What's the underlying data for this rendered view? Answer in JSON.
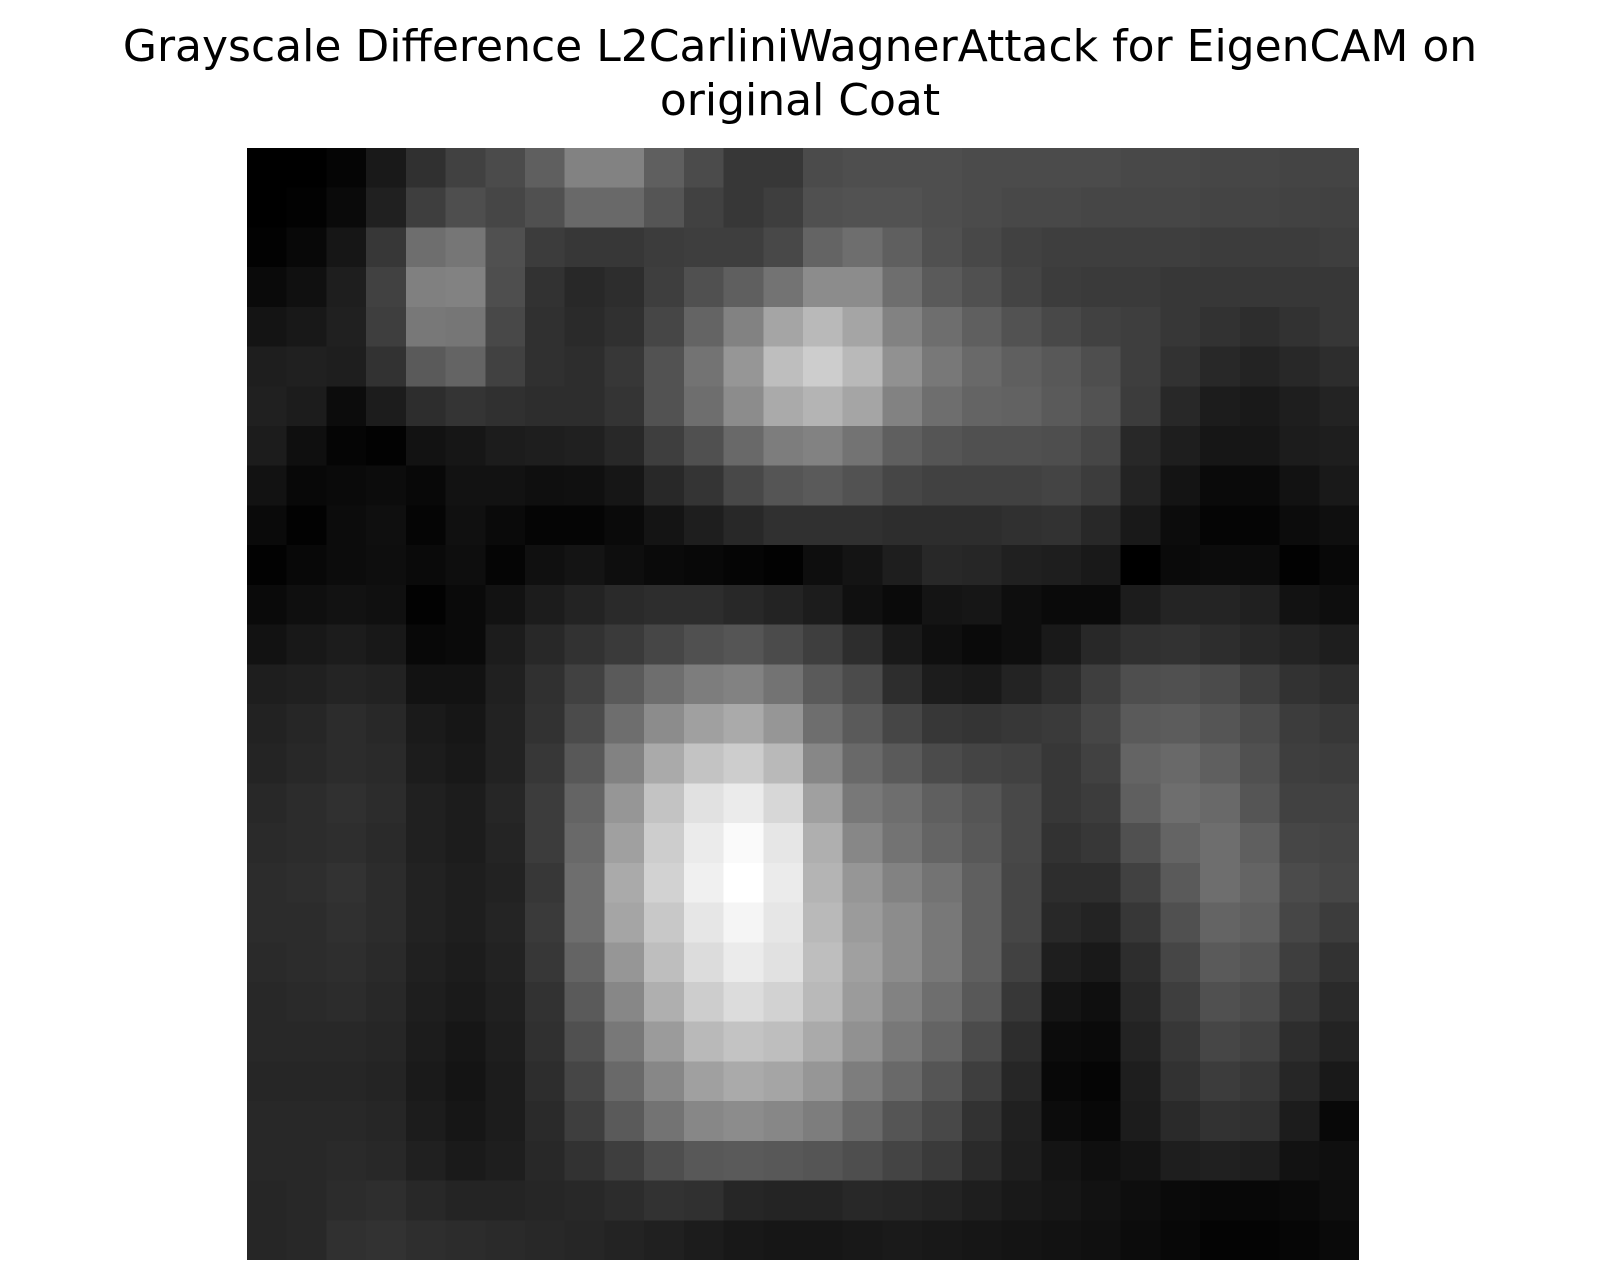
{
  "chart_data": {
    "type": "heatmap",
    "title_line1": "Grayscale Difference L2CarliniWagnerAttack for EigenCAM on",
    "title_line2": "original Coat",
    "colormap": "gray",
    "axes_visible": false,
    "rows": 28,
    "cols": 28,
    "values": [
      [
        0,
        0,
        5,
        25,
        48,
        65,
        75,
        95,
        130,
        130,
        95,
        75,
        55,
        55,
        75,
        78,
        78,
        78,
        75,
        75,
        75,
        75,
        72,
        72,
        70,
        70,
        68,
        68
      ],
      [
        0,
        2,
        10,
        32,
        62,
        78,
        70,
        80,
        105,
        105,
        85,
        65,
        55,
        62,
        80,
        82,
        82,
        78,
        75,
        72,
        72,
        70,
        70,
        70,
        68,
        68,
        66,
        65
      ],
      [
        2,
        8,
        22,
        55,
        110,
        118,
        80,
        60,
        55,
        55,
        60,
        62,
        62,
        72,
        100,
        110,
        95,
        80,
        72,
        65,
        62,
        62,
        62,
        62,
        60,
        60,
        60,
        62
      ],
      [
        10,
        16,
        30,
        65,
        128,
        130,
        78,
        50,
        40,
        45,
        62,
        80,
        95,
        115,
        140,
        140,
        110,
        90,
        80,
        68,
        60,
        58,
        58,
        55,
        55,
        55,
        55,
        55
      ],
      [
        20,
        24,
        32,
        62,
        120,
        118,
        72,
        48,
        42,
        48,
        70,
        100,
        130,
        165,
        185,
        165,
        130,
        110,
        95,
        82,
        72,
        65,
        62,
        55,
        50,
        45,
        50,
        55
      ],
      [
        30,
        32,
        30,
        50,
        90,
        100,
        65,
        48,
        45,
        55,
        82,
        115,
        150,
        190,
        205,
        185,
        145,
        120,
        105,
        95,
        88,
        78,
        62,
        50,
        40,
        35,
        40,
        45
      ],
      [
        32,
        28,
        12,
        28,
        45,
        52,
        48,
        45,
        45,
        52,
        82,
        110,
        140,
        170,
        180,
        165,
        130,
        110,
        100,
        98,
        90,
        82,
        60,
        40,
        28,
        25,
        30,
        35
      ],
      [
        28,
        15,
        5,
        2,
        18,
        22,
        28,
        30,
        32,
        40,
        62,
        80,
        105,
        125,
        130,
        115,
        95,
        85,
        80,
        80,
        78,
        70,
        40,
        30,
        22,
        22,
        28,
        30
      ],
      [
        18,
        8,
        10,
        12,
        8,
        18,
        18,
        15,
        16,
        22,
        40,
        52,
        72,
        85,
        90,
        82,
        70,
        65,
        65,
        65,
        68,
        60,
        35,
        20,
        10,
        10,
        18,
        25
      ],
      [
        10,
        2,
        12,
        15,
        5,
        16,
        10,
        5,
        5,
        10,
        20,
        30,
        40,
        48,
        48,
        48,
        45,
        45,
        45,
        48,
        50,
        40,
        25,
        12,
        5,
        5,
        12,
        15
      ],
      [
        2,
        8,
        12,
        14,
        10,
        14,
        5,
        16,
        20,
        14,
        10,
        8,
        5,
        2,
        14,
        20,
        30,
        40,
        38,
        32,
        30,
        25,
        0,
        10,
        12,
        12,
        2,
        8
      ],
      [
        10,
        15,
        18,
        16,
        2,
        10,
        18,
        28,
        35,
        42,
        45,
        45,
        40,
        35,
        28,
        16,
        10,
        20,
        22,
        14,
        10,
        10,
        28,
        36,
        36,
        32,
        18,
        14
      ],
      [
        18,
        24,
        28,
        24,
        8,
        10,
        28,
        40,
        50,
        58,
        70,
        80,
        85,
        75,
        62,
        45,
        25,
        15,
        10,
        14,
        25,
        40,
        48,
        50,
        45,
        40,
        35,
        30
      ],
      [
        30,
        32,
        36,
        34,
        18,
        18,
        32,
        48,
        65,
        90,
        110,
        125,
        130,
        115,
        90,
        75,
        45,
        28,
        25,
        35,
        45,
        62,
        78,
        80,
        75,
        62,
        50,
        45
      ],
      [
        34,
        38,
        44,
        40,
        26,
        22,
        34,
        50,
        75,
        110,
        140,
        160,
        170,
        150,
        110,
        90,
        70,
        55,
        52,
        55,
        58,
        70,
        90,
        92,
        85,
        75,
        60,
        55
      ],
      [
        36,
        40,
        44,
        42,
        28,
        24,
        34,
        55,
        88,
        130,
        170,
        195,
        205,
        185,
        135,
        105,
        90,
        75,
        68,
        65,
        55,
        65,
        100,
        105,
        95,
        80,
        62,
        60
      ],
      [
        40,
        44,
        48,
        44,
        32,
        28,
        38,
        60,
        100,
        150,
        195,
        225,
        235,
        215,
        160,
        120,
        110,
        95,
        85,
        72,
        55,
        60,
        95,
        110,
        105,
        85,
        65,
        65
      ],
      [
        42,
        44,
        46,
        42,
        32,
        28,
        36,
        60,
        105,
        160,
        205,
        235,
        250,
        230,
        175,
        135,
        115,
        100,
        88,
        72,
        50,
        55,
        80,
        100,
        110,
        95,
        70,
        68
      ],
      [
        44,
        46,
        50,
        44,
        34,
        30,
        34,
        55,
        110,
        170,
        210,
        240,
        255,
        235,
        180,
        150,
        130,
        115,
        95,
        70,
        45,
        45,
        65,
        90,
        110,
        100,
        75,
        70
      ],
      [
        44,
        44,
        48,
        44,
        34,
        30,
        36,
        58,
        110,
        165,
        200,
        230,
        245,
        230,
        185,
        155,
        140,
        120,
        95,
        70,
        40,
        35,
        55,
        80,
        100,
        95,
        70,
        60
      ],
      [
        42,
        44,
        46,
        42,
        32,
        28,
        34,
        55,
        100,
        150,
        190,
        220,
        235,
        225,
        190,
        160,
        140,
        120,
        95,
        65,
        30,
        25,
        45,
        70,
        90,
        85,
        62,
        50
      ],
      [
        40,
        42,
        44,
        40,
        30,
        26,
        32,
        50,
        90,
        135,
        175,
        205,
        220,
        210,
        185,
        155,
        130,
        110,
        88,
        55,
        20,
        15,
        40,
        62,
        80,
        75,
        55,
        42
      ],
      [
        40,
        40,
        40,
        38,
        28,
        22,
        30,
        48,
        80,
        120,
        155,
        185,
        195,
        190,
        170,
        145,
        120,
        100,
        75,
        45,
        12,
        10,
        35,
        55,
        70,
        65,
        45,
        35
      ],
      [
        38,
        38,
        38,
        36,
        26,
        20,
        28,
        45,
        70,
        105,
        135,
        160,
        170,
        165,
        150,
        125,
        105,
        85,
        62,
        38,
        8,
        5,
        30,
        50,
        60,
        55,
        38,
        25
      ],
      [
        40,
        40,
        40,
        38,
        28,
        22,
        28,
        42,
        62,
        90,
        115,
        135,
        140,
        135,
        125,
        105,
        85,
        72,
        50,
        32,
        12,
        8,
        28,
        42,
        50,
        48,
        28,
        8
      ],
      [
        40,
        40,
        42,
        40,
        32,
        26,
        30,
        40,
        50,
        62,
        78,
        88,
        90,
        88,
        85,
        78,
        68,
        58,
        42,
        30,
        20,
        15,
        20,
        30,
        32,
        30,
        18,
        15
      ],
      [
        38,
        40,
        44,
        46,
        40,
        36,
        36,
        38,
        40,
        44,
        50,
        48,
        38,
        36,
        36,
        40,
        38,
        35,
        30,
        25,
        22,
        18,
        14,
        10,
        8,
        8,
        10,
        14
      ],
      [
        38,
        40,
        48,
        50,
        46,
        44,
        42,
        40,
        38,
        35,
        32,
        28,
        24,
        22,
        22,
        24,
        26,
        24,
        22,
        20,
        18,
        16,
        12,
        8,
        4,
        4,
        6,
        10
      ]
    ]
  }
}
